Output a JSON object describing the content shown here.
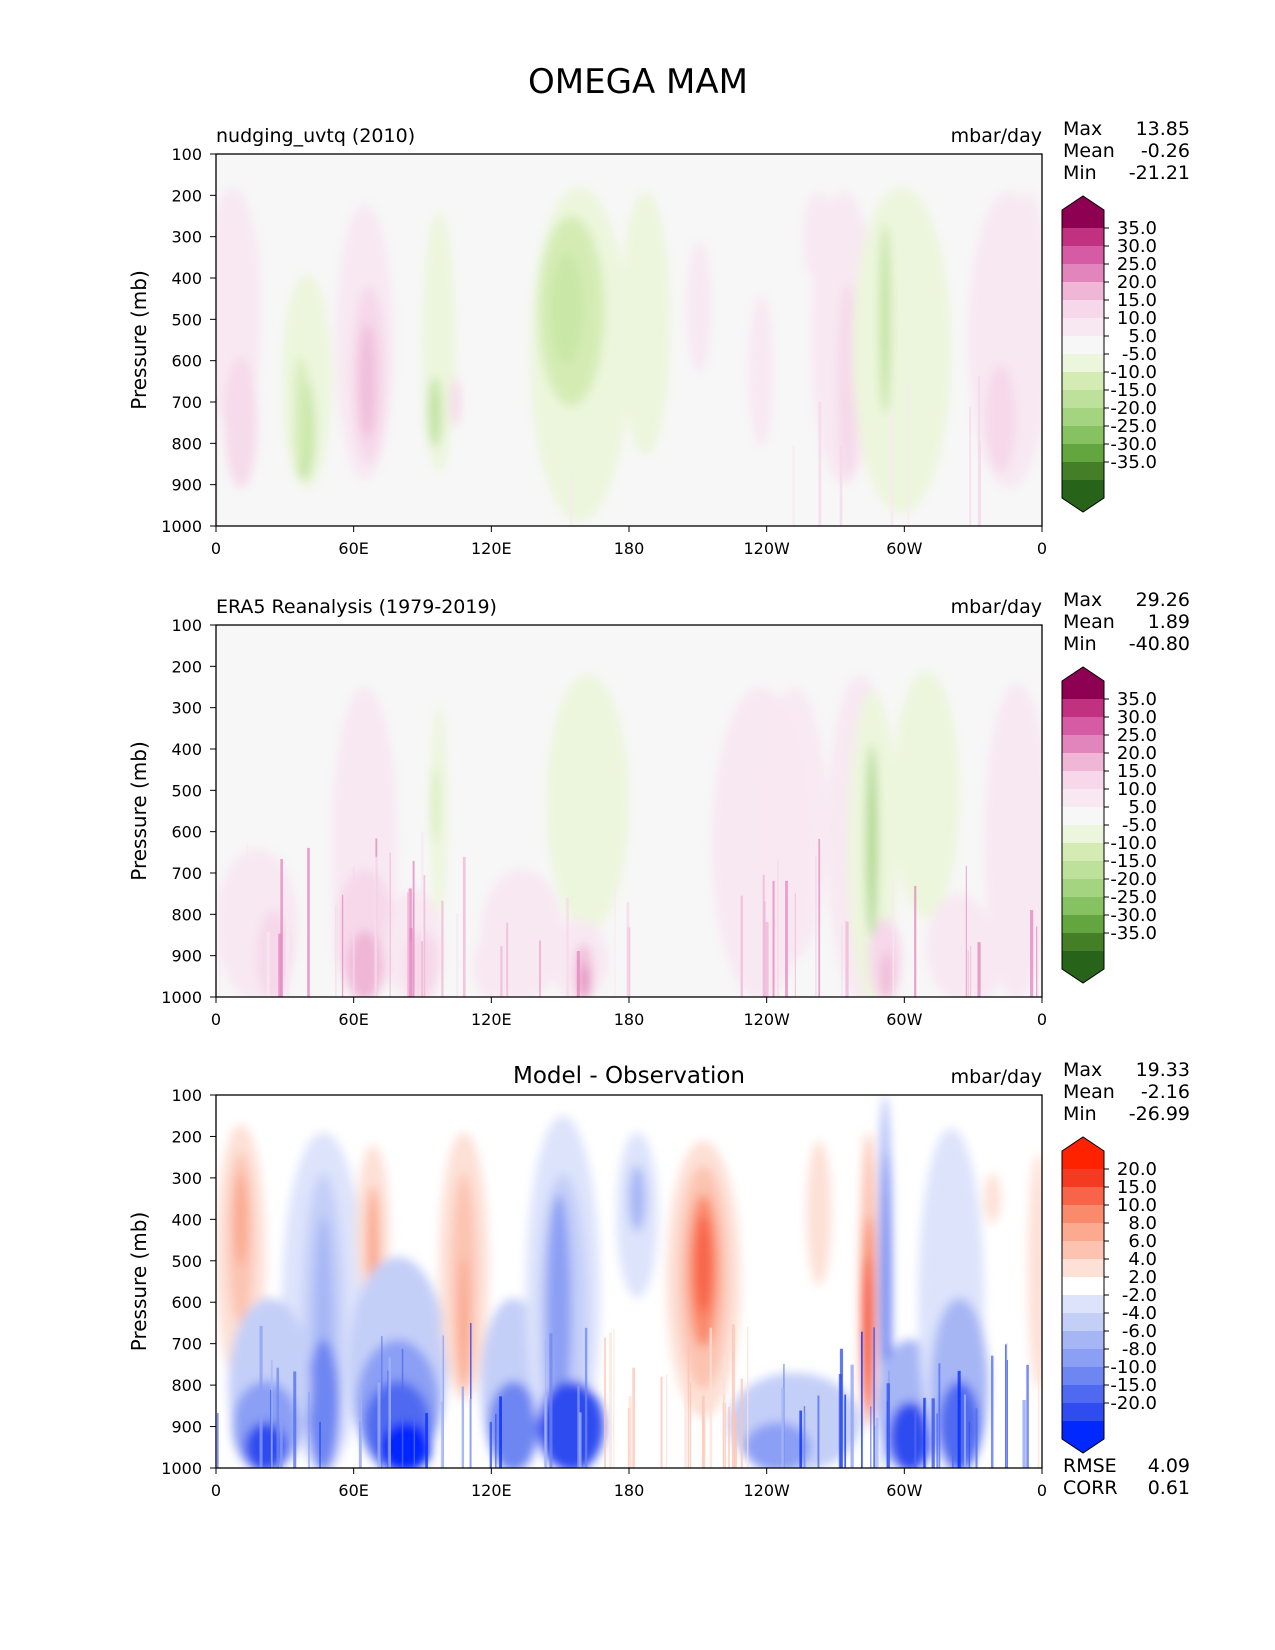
{
  "title": "OMEGA MAM",
  "x_tick_labels": [
    "0",
    "60E",
    "120E",
    "180",
    "120W",
    "60W",
    "0"
  ],
  "y_tick_labels": [
    "100",
    "200",
    "300",
    "400",
    "500",
    "600",
    "700",
    "800",
    "900",
    "1000"
  ],
  "colors": {
    "background_field": "#f7f7f7",
    "pink_scale": [
      "#f8e8f2",
      "#f6d8ea",
      "#efb6d6",
      "#e385bd",
      "#d55ca4",
      "#c0317f",
      "#8e0152"
    ],
    "green_scale": [
      "#ecf6dc",
      "#d4ecb4",
      "#bde19a",
      "#a4d47f",
      "#86c162",
      "#63a53f",
      "#447f28",
      "#276419"
    ],
    "red_scale": [
      "#fde0d6",
      "#fcc3b1",
      "#fba98f",
      "#fa8a6c",
      "#f86448",
      "#f53a22",
      "#ff2200"
    ],
    "blue_scale": [
      "#dde3fb",
      "#c4cff8",
      "#a6b6f5",
      "#8b9ff4",
      "#6e86f2",
      "#4f6af0",
      "#2e4cf0",
      "#0028ff"
    ]
  },
  "chart_data": [
    {
      "type": "heatmap",
      "title": "nudging_uvtq (2010)",
      "units": "mbar/day",
      "xlabel": "",
      "ylabel": "Pressure (mb)",
      "x_ticks": [
        "0",
        "60E",
        "120E",
        "180",
        "120W",
        "60W",
        "0"
      ],
      "y_ticks": [
        100,
        200,
        300,
        400,
        500,
        600,
        700,
        800,
        900,
        1000
      ],
      "ylim": [
        1000,
        100
      ],
      "stats": {
        "max_label": "Max",
        "max": "13.85",
        "mean_label": "Mean",
        "mean": "-0.26",
        "min_label": "Min",
        "min": "-21.21"
      },
      "colorbar": {
        "levels": [
          "35.0",
          "30.0",
          "25.0",
          "20.0",
          "15.0",
          "10.0",
          "5.0",
          "-5.0",
          "-10.0",
          "-15.0",
          "-20.0",
          "-25.0",
          "-30.0",
          "-35.0"
        ],
        "colors": [
          "#8e0152",
          "#c0317f",
          "#d55ca4",
          "#e385bd",
          "#efb6d6",
          "#f6d8ea",
          "#f8e8f2",
          "#f7f7f7",
          "#ecf6dc",
          "#d4ecb4",
          "#bde19a",
          "#a4d47f",
          "#86c162",
          "#63a53f",
          "#447f28",
          "#276419"
        ]
      }
    },
    {
      "type": "heatmap",
      "title": "ERA5 Reanalysis (1979-2019)",
      "units": "mbar/day",
      "xlabel": "",
      "ylabel": "Pressure (mb)",
      "x_ticks": [
        "0",
        "60E",
        "120E",
        "180",
        "120W",
        "60W",
        "0"
      ],
      "y_ticks": [
        100,
        200,
        300,
        400,
        500,
        600,
        700,
        800,
        900,
        1000
      ],
      "ylim": [
        1000,
        100
      ],
      "stats": {
        "max_label": "Max",
        "max": "29.26",
        "mean_label": "Mean",
        "mean": "1.89",
        "min_label": "Min",
        "min": "-40.80"
      },
      "colorbar": {
        "levels": [
          "35.0",
          "30.0",
          "25.0",
          "20.0",
          "15.0",
          "10.0",
          "5.0",
          "-5.0",
          "-10.0",
          "-15.0",
          "-20.0",
          "-25.0",
          "-30.0",
          "-35.0"
        ],
        "colors": [
          "#8e0152",
          "#c0317f",
          "#d55ca4",
          "#e385bd",
          "#efb6d6",
          "#f6d8ea",
          "#f8e8f2",
          "#f7f7f7",
          "#ecf6dc",
          "#d4ecb4",
          "#bde19a",
          "#a4d47f",
          "#86c162",
          "#63a53f",
          "#447f28",
          "#276419"
        ]
      }
    },
    {
      "type": "heatmap",
      "title": "Model - Observation",
      "units": "mbar/day",
      "xlabel": "",
      "ylabel": "Pressure (mb)",
      "x_ticks": [
        "0",
        "60E",
        "120E",
        "180",
        "120W",
        "60W",
        "0"
      ],
      "y_ticks": [
        100,
        200,
        300,
        400,
        500,
        600,
        700,
        800,
        900,
        1000
      ],
      "ylim": [
        1000,
        100
      ],
      "stats": {
        "max_label": "Max",
        "max": "19.33",
        "mean_label": "Mean",
        "mean": "-2.16",
        "min_label": "Min",
        "min": "-26.99"
      },
      "metrics": {
        "rmse_label": "RMSE",
        "rmse": "4.09",
        "corr_label": "CORR",
        "corr": "0.61"
      },
      "colorbar": {
        "levels": [
          "20.0",
          "15.0",
          "10.0",
          "8.0",
          "6.0",
          "4.0",
          "2.0",
          "-2.0",
          "-4.0",
          "-6.0",
          "-8.0",
          "-10.0",
          "-15.0",
          "-20.0"
        ],
        "colors": [
          "#ff2200",
          "#f53a22",
          "#f86448",
          "#fa8a6c",
          "#fba98f",
          "#fcc3b1",
          "#fde0d6",
          "#ffffff",
          "#dde3fb",
          "#c4cff8",
          "#a6b6f5",
          "#8b9ff4",
          "#6e86f2",
          "#4f6af0",
          "#2e4cf0",
          "#0028ff"
        ]
      }
    }
  ]
}
